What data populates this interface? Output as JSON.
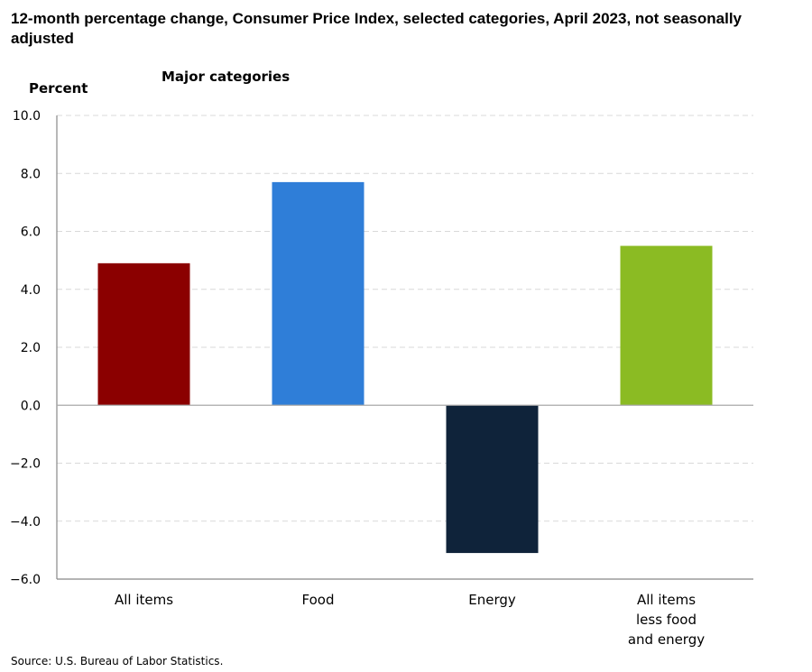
{
  "chart_data": {
    "type": "bar",
    "title": "12-month percentage change, Consumer Price Index, selected categories, April 2023, not seasonally adjusted",
    "subtitle": "Major categories",
    "ylabel": "Percent",
    "xlabel": "",
    "ylim": [
      -6.0,
      10.0
    ],
    "yticks": [
      10.0,
      8.0,
      6.0,
      4.0,
      2.0,
      0.0,
      -2.0,
      -4.0,
      -6.0
    ],
    "ytick_labels": [
      "10.0",
      "8.0",
      "6.0",
      "4.0",
      "2.0",
      "0.0",
      "-2.0",
      "-4.0",
      "-6.0"
    ],
    "grid": true,
    "categories": [
      [
        "All items"
      ],
      [
        "Food"
      ],
      [
        "Energy"
      ],
      [
        "All items",
        "less food",
        "and energy"
      ]
    ],
    "values": [
      4.9,
      7.7,
      -5.1,
      5.5
    ],
    "colors": [
      "#8B0000",
      "#2F7ED8",
      "#0F233A",
      "#8BBB23"
    ],
    "source": "Source: U.S. Bureau of Labor Statistics."
  }
}
